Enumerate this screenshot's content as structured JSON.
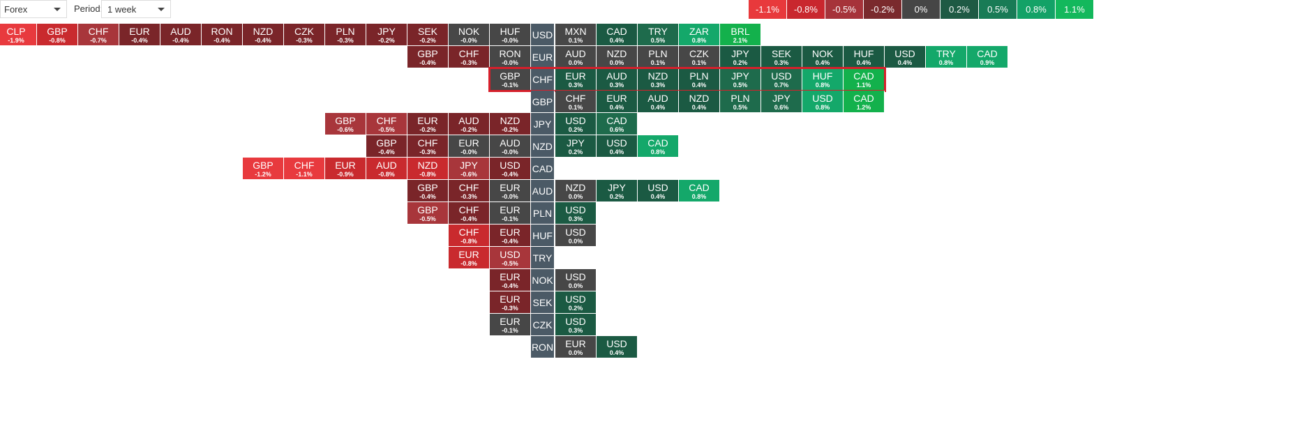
{
  "controls": {
    "market": "Forex",
    "period_label": "Period:",
    "period_value": "1 week"
  },
  "scale": [
    {
      "label": "-1.1%",
      "color": "#e8393c"
    },
    {
      "label": "-0.8%",
      "color": "#c9272e"
    },
    {
      "label": "-0.5%",
      "color": "#a6333a"
    },
    {
      "label": "-0.2%",
      "color": "#7a2a2d"
    },
    {
      "label": "0%",
      "color": "#464646"
    },
    {
      "label": "0.2%",
      "color": "#1e5a44"
    },
    {
      "label": "0.5%",
      "color": "#197b56"
    },
    {
      "label": "0.8%",
      "color": "#13a267"
    },
    {
      "label": "1.1%",
      "color": "#13b85c"
    }
  ],
  "highlighted_row": "CHF",
  "rows": [
    {
      "base": "USD",
      "left": [
        [
          "CLP",
          "-1.9%"
        ],
        [
          "GBP",
          "-0.8%"
        ],
        [
          "CHF",
          "-0.7%"
        ],
        [
          "EUR",
          "-0.4%"
        ],
        [
          "AUD",
          "-0.4%"
        ],
        [
          "RON",
          "-0.4%"
        ],
        [
          "NZD",
          "-0.4%"
        ],
        [
          "CZK",
          "-0.3%"
        ],
        [
          "PLN",
          "-0.3%"
        ],
        [
          "JPY",
          "-0.2%"
        ],
        [
          "SEK",
          "-0.2%"
        ],
        [
          "NOK",
          "-0.0%"
        ],
        [
          "HUF",
          "-0.0%"
        ]
      ],
      "right": [
        [
          "MXN",
          "0.1%"
        ],
        [
          "CAD",
          "0.4%"
        ],
        [
          "TRY",
          "0.5%"
        ],
        [
          "ZAR",
          "0.8%"
        ],
        [
          "BRL",
          "2.1%"
        ]
      ]
    },
    {
      "base": "EUR",
      "left": [
        [
          "GBP",
          "-0.4%"
        ],
        [
          "CHF",
          "-0.3%"
        ],
        [
          "RON",
          "-0.0%"
        ]
      ],
      "right": [
        [
          "AUD",
          "0.0%"
        ],
        [
          "NZD",
          "0.0%"
        ],
        [
          "PLN",
          "0.1%"
        ],
        [
          "CZK",
          "0.1%"
        ],
        [
          "JPY",
          "0.2%"
        ],
        [
          "SEK",
          "0.3%"
        ],
        [
          "NOK",
          "0.4%"
        ],
        [
          "HUF",
          "0.4%"
        ],
        [
          "USD",
          "0.4%"
        ],
        [
          "TRY",
          "0.8%"
        ],
        [
          "CAD",
          "0.9%"
        ]
      ]
    },
    {
      "base": "CHF",
      "left": [
        [
          "GBP",
          "-0.1%"
        ]
      ],
      "right": [
        [
          "EUR",
          "0.3%"
        ],
        [
          "AUD",
          "0.3%"
        ],
        [
          "NZD",
          "0.3%"
        ],
        [
          "PLN",
          "0.4%"
        ],
        [
          "JPY",
          "0.5%"
        ],
        [
          "USD",
          "0.7%"
        ],
        [
          "HUF",
          "0.8%"
        ],
        [
          "CAD",
          "1.1%"
        ]
      ]
    },
    {
      "base": "GBP",
      "left": [],
      "right": [
        [
          "CHF",
          "0.1%"
        ],
        [
          "EUR",
          "0.4%"
        ],
        [
          "AUD",
          "0.4%"
        ],
        [
          "NZD",
          "0.4%"
        ],
        [
          "PLN",
          "0.5%"
        ],
        [
          "JPY",
          "0.6%"
        ],
        [
          "USD",
          "0.8%"
        ],
        [
          "CAD",
          "1.2%"
        ]
      ]
    },
    {
      "base": "JPY",
      "left": [
        [
          "GBP",
          "-0.6%"
        ],
        [
          "CHF",
          "-0.5%"
        ],
        [
          "EUR",
          "-0.2%"
        ],
        [
          "AUD",
          "-0.2%"
        ],
        [
          "NZD",
          "-0.2%"
        ]
      ],
      "right": [
        [
          "USD",
          "0.2%"
        ],
        [
          "CAD",
          "0.6%"
        ]
      ]
    },
    {
      "base": "NZD",
      "left": [
        [
          "GBP",
          "-0.4%"
        ],
        [
          "CHF",
          "-0.3%"
        ],
        [
          "EUR",
          "-0.0%"
        ],
        [
          "AUD",
          "-0.0%"
        ]
      ],
      "right": [
        [
          "JPY",
          "0.2%"
        ],
        [
          "USD",
          "0.4%"
        ],
        [
          "CAD",
          "0.8%"
        ]
      ]
    },
    {
      "base": "CAD",
      "left": [
        [
          "GBP",
          "-1.2%"
        ],
        [
          "CHF",
          "-1.1%"
        ],
        [
          "EUR",
          "-0.9%"
        ],
        [
          "AUD",
          "-0.8%"
        ],
        [
          "NZD",
          "-0.8%"
        ],
        [
          "JPY",
          "-0.6%"
        ],
        [
          "USD",
          "-0.4%"
        ]
      ],
      "right": []
    },
    {
      "base": "AUD",
      "left": [
        [
          "GBP",
          "-0.4%"
        ],
        [
          "CHF",
          "-0.3%"
        ],
        [
          "EUR",
          "-0.0%"
        ]
      ],
      "right": [
        [
          "NZD",
          "0.0%"
        ],
        [
          "JPY",
          "0.2%"
        ],
        [
          "USD",
          "0.4%"
        ],
        [
          "CAD",
          "0.8%"
        ]
      ]
    },
    {
      "base": "PLN",
      "left": [
        [
          "GBP",
          "-0.5%"
        ],
        [
          "CHF",
          "-0.4%"
        ],
        [
          "EUR",
          "-0.1%"
        ]
      ],
      "right": [
        [
          "USD",
          "0.3%"
        ]
      ]
    },
    {
      "base": "HUF",
      "left": [
        [
          "CHF",
          "-0.8%"
        ],
        [
          "EUR",
          "-0.4%"
        ]
      ],
      "right": [
        [
          "USD",
          "0.0%"
        ]
      ]
    },
    {
      "base": "TRY",
      "left": [
        [
          "EUR",
          "-0.8%"
        ],
        [
          "USD",
          "-0.5%"
        ]
      ],
      "right": []
    },
    {
      "base": "NOK",
      "left": [
        [
          "EUR",
          "-0.4%"
        ]
      ],
      "right": [
        [
          "USD",
          "0.0%"
        ]
      ]
    },
    {
      "base": "SEK",
      "left": [
        [
          "EUR",
          "-0.3%"
        ]
      ],
      "right": [
        [
          "USD",
          "0.2%"
        ]
      ]
    },
    {
      "base": "CZK",
      "left": [
        [
          "EUR",
          "-0.1%"
        ]
      ],
      "right": [
        [
          "USD",
          "0.3%"
        ]
      ]
    },
    {
      "base": "RON",
      "left": [],
      "right": [
        [
          "EUR",
          "0.0%"
        ],
        [
          "USD",
          "0.4%"
        ]
      ]
    }
  ]
}
